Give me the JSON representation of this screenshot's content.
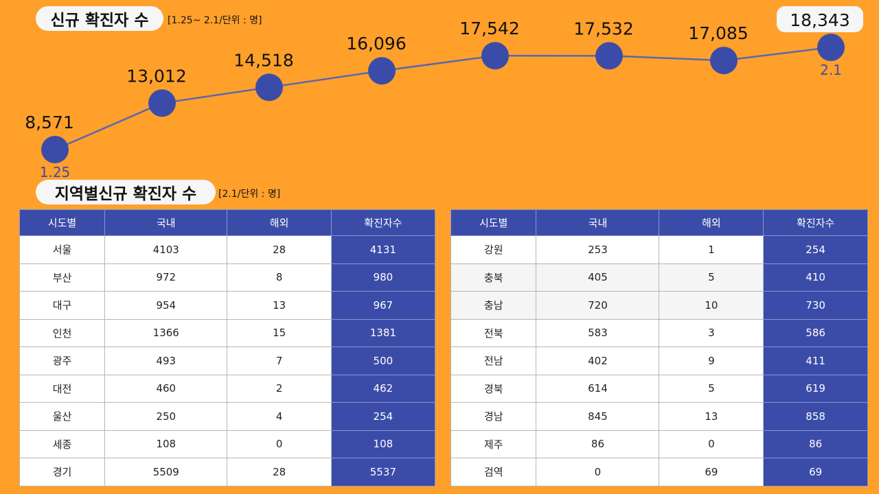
{
  "title1": "신규 확진자 수",
  "subtitle1": "[1.25~ 2.1/단위 : 명]",
  "title2": "지역별신규 확진자 수",
  "subtitle2": "[2.1/단위 : 명]",
  "colors": {
    "background": "#ffa02b",
    "marker": "#3b4ca8",
    "line": "#5a66b0",
    "table_header": "#3b4ca8"
  },
  "chart_data": {
    "type": "line",
    "x_labels": [
      "1.25",
      "",
      "",
      "",
      "",
      "",
      "",
      "2.1"
    ],
    "values": [
      8571,
      13012,
      14518,
      16096,
      17542,
      17532,
      17085,
      18343
    ],
    "data_labels": [
      "8,571",
      "13,012",
      "14,518",
      "16,096",
      "17,542",
      "17,532",
      "17,085",
      "18,343"
    ],
    "highlighted_index": 7,
    "grid": false
  },
  "table_headers": [
    "시도별",
    "국내",
    "해외",
    "확진자수"
  ],
  "table_left": [
    [
      "서울",
      "4103",
      "28",
      "4131"
    ],
    [
      "부산",
      "972",
      "8",
      "980"
    ],
    [
      "대구",
      "954",
      "13",
      "967"
    ],
    [
      "인천",
      "1366",
      "15",
      "1381"
    ],
    [
      "광주",
      "493",
      "7",
      "500"
    ],
    [
      "대전",
      "460",
      "2",
      "462"
    ],
    [
      "울산",
      "250",
      "4",
      "254"
    ],
    [
      "세종",
      "108",
      "0",
      "108"
    ],
    [
      "경기",
      "5509",
      "28",
      "5537"
    ]
  ],
  "table_right": [
    [
      "강원",
      "253",
      "1",
      "254"
    ],
    [
      "충북",
      "405",
      "5",
      "410"
    ],
    [
      "충남",
      "720",
      "10",
      "730"
    ],
    [
      "전북",
      "583",
      "3",
      "586"
    ],
    [
      "전남",
      "402",
      "9",
      "411"
    ],
    [
      "경북",
      "614",
      "5",
      "619"
    ],
    [
      "경남",
      "845",
      "13",
      "858"
    ],
    [
      "제주",
      "86",
      "0",
      "86"
    ],
    [
      "검역",
      "0",
      "69",
      "69"
    ]
  ]
}
